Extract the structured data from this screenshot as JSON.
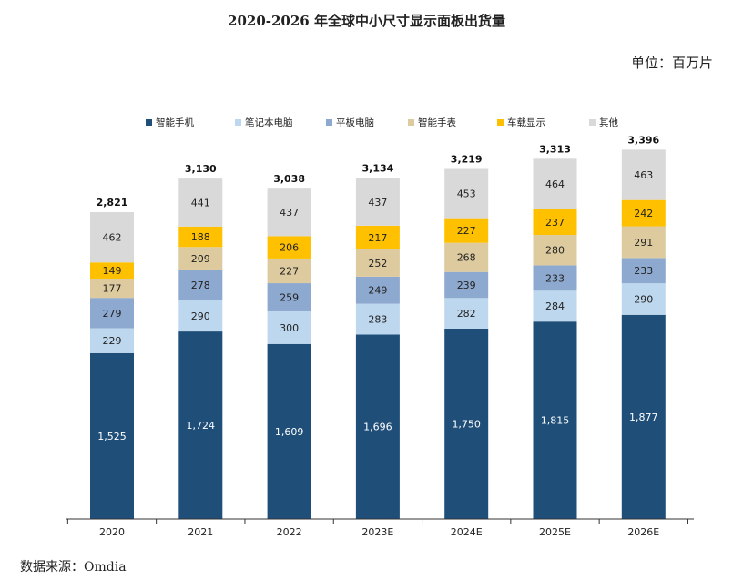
{
  "title": "2020-2026 年全球中小尺寸显示面板出货量",
  "unit_label": "单位：百万片",
  "source": "数据来源：Omdia",
  "colors": {
    "smartphone": "#1f4e79",
    "notebook": "#bdd7ee",
    "tablet": "#8ea9cf",
    "smartwatch": "#ddcb9f",
    "auto_display": "#ffc000",
    "other": "#d9d9d9",
    "axis": "#333333"
  },
  "chart_data": {
    "type": "bar",
    "stacked": true,
    "categories": [
      "2020",
      "2021",
      "2022",
      "2023E",
      "2024E",
      "2025E",
      "2026E"
    ],
    "series": [
      {
        "key": "smartphone",
        "name": "智能手机",
        "values": [
          1525,
          1724,
          1609,
          1696,
          1750,
          1815,
          1877
        ],
        "labels": [
          "1,525",
          "1,724",
          "1,609",
          "1,696",
          "1,750",
          "1,815",
          "1,877"
        ]
      },
      {
        "key": "notebook",
        "name": "笔记本电脑",
        "values": [
          229,
          290,
          300,
          283,
          282,
          284,
          290
        ],
        "labels": [
          "229",
          "290",
          "300",
          "283",
          "282",
          "284",
          "290"
        ]
      },
      {
        "key": "tablet",
        "name": "平板电脑",
        "values": [
          279,
          278,
          259,
          249,
          239,
          233,
          233
        ],
        "labels": [
          "279",
          "278",
          "259",
          "249",
          "239",
          "233",
          "233"
        ]
      },
      {
        "key": "smartwatch",
        "name": "智能手表",
        "values": [
          177,
          209,
          227,
          252,
          268,
          280,
          291
        ],
        "labels": [
          "177",
          "209",
          "227",
          "252",
          "268",
          "280",
          "291"
        ]
      },
      {
        "key": "auto_display",
        "name": "车载显示",
        "values": [
          149,
          188,
          206,
          217,
          227,
          237,
          242
        ],
        "labels": [
          "149",
          "188",
          "206",
          "217",
          "227",
          "237",
          "242"
        ]
      },
      {
        "key": "other",
        "name": "其他",
        "values": [
          462,
          441,
          437,
          437,
          453,
          464,
          463
        ],
        "labels": [
          "462",
          "441",
          "437",
          "437",
          "453",
          "464",
          "463"
        ]
      }
    ],
    "totals": [
      2821,
      3130,
      3038,
      3134,
      3219,
      3313,
      3396
    ],
    "total_labels": [
      "2,821",
      "3,130",
      "3,038",
      "3,134",
      "3,219",
      "3,313",
      "3,396"
    ],
    "ylim": [
      0,
      3600
    ],
    "grid": false,
    "legend_position": "top"
  }
}
